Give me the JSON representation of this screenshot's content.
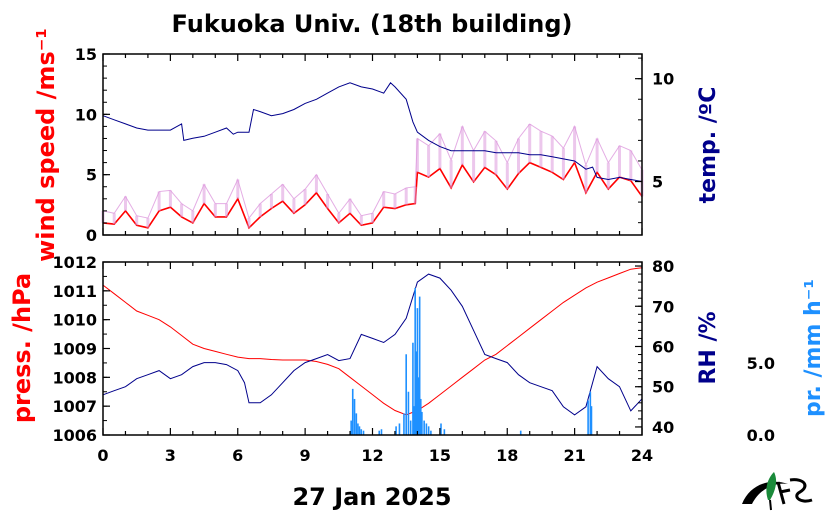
{
  "chart_data": [
    {
      "panel": "top",
      "type": "line",
      "title": "Fukuoka Univ. (18th building)",
      "x_ticks": [
        "0",
        "3",
        "6",
        "9",
        "12",
        "15",
        "18",
        "21",
        "24"
      ],
      "xlim": [
        0,
        24
      ],
      "left_axis": {
        "label": "wind speed /ms⁻¹",
        "ylim": [
          0,
          15
        ],
        "ticks": [
          "0",
          "5",
          "10",
          "15"
        ],
        "color": "#ff0000"
      },
      "right_axis": {
        "label": "temp. /ºC",
        "ylim": [
          2.4,
          11.2
        ],
        "ticks": [
          "5",
          "10"
        ],
        "color": "#00008b"
      },
      "series": [
        {
          "axis": "left",
          "style": "mean",
          "color": "#ff0000",
          "x": [
            0,
            0.5,
            1,
            1.5,
            2,
            2.5,
            3,
            3.5,
            4,
            4.5,
            5,
            5.5,
            6,
            6.5,
            7,
            7.5,
            8,
            8.5,
            9,
            9.5,
            10,
            10.5,
            11,
            11.5,
            12,
            12.5,
            13,
            13.5,
            13.9,
            14,
            14.5,
            15,
            15.5,
            16,
            16.5,
            17,
            17.5,
            18,
            18.5,
            19,
            19.5,
            20,
            20.5,
            21,
            21.5,
            22,
            22.5,
            23,
            23.5,
            24
          ],
          "y": [
            1.0,
            0.9,
            2.0,
            0.8,
            0.6,
            2.0,
            2.3,
            1.5,
            1.0,
            2.6,
            1.5,
            1.5,
            3.0,
            0.6,
            1.5,
            2.2,
            2.8,
            1.8,
            2.5,
            3.5,
            2.2,
            1.0,
            1.8,
            0.8,
            1.0,
            2.3,
            2.2,
            2.5,
            2.6,
            5.2,
            4.8,
            5.5,
            3.9,
            5.8,
            4.4,
            5.6,
            5.0,
            3.8,
            5.1,
            6.0,
            5.6,
            5.2,
            4.6,
            6.0,
            3.5,
            5.2,
            3.8,
            4.8,
            4.5,
            3.2
          ]
        },
        {
          "axis": "left",
          "style": "gust-band",
          "color": "#dd99dd",
          "x": [
            0,
            0.5,
            1,
            1.5,
            2,
            2.5,
            3,
            3.5,
            4,
            4.5,
            5,
            5.5,
            6,
            6.5,
            7,
            7.5,
            8,
            8.5,
            9,
            9.5,
            10,
            10.5,
            11,
            11.5,
            12,
            12.5,
            13,
            13.5,
            13.9,
            14,
            14.5,
            15,
            15.5,
            16,
            16.5,
            17,
            17.5,
            18,
            18.5,
            19,
            19.5,
            20,
            20.5,
            21,
            21.5,
            22,
            22.5,
            23,
            23.5,
            24
          ],
          "y": [
            2.0,
            1.8,
            3.2,
            1.6,
            1.4,
            3.6,
            3.7,
            2.6,
            2.0,
            4.2,
            2.6,
            2.6,
            4.6,
            1.4,
            2.6,
            3.4,
            4.2,
            3.0,
            3.8,
            5.0,
            3.4,
            1.8,
            3.0,
            1.6,
            1.8,
            3.6,
            3.4,
            3.9,
            4.0,
            8.0,
            7.4,
            8.4,
            6.2,
            9.0,
            7.0,
            8.6,
            7.8,
            6.0,
            8.0,
            9.2,
            8.6,
            8.2,
            7.2,
            9.0,
            5.8,
            8.0,
            6.0,
            7.4,
            7.0,
            5.4
          ]
        },
        {
          "axis": "right",
          "name": "",
          "color": "#00008b",
          "x": [
            0,
            0.5,
            1,
            1.5,
            2,
            2.5,
            3,
            3.5,
            3.6,
            4,
            4.5,
            5,
            5.5,
            5.8,
            6,
            6.5,
            6.7,
            7,
            7.5,
            8,
            8.5,
            9,
            9.5,
            10,
            10.5,
            11,
            11.5,
            12,
            12.5,
            12.8,
            13,
            13.5,
            13.8,
            14,
            14.5,
            15,
            15.5,
            16,
            16.5,
            17,
            17.5,
            18,
            18.5,
            19,
            19.5,
            20,
            20.5,
            21,
            21.5,
            21.8,
            22,
            22.5,
            23,
            23.5,
            24
          ],
          "y": [
            8.2,
            8.0,
            7.8,
            7.6,
            7.5,
            7.5,
            7.5,
            7.8,
            7.0,
            7.1,
            7.2,
            7.4,
            7.6,
            7.3,
            7.4,
            7.4,
            8.5,
            8.4,
            8.2,
            8.3,
            8.5,
            8.8,
            9.0,
            9.3,
            9.6,
            9.8,
            9.6,
            9.5,
            9.3,
            9.8,
            9.6,
            9.0,
            7.9,
            7.4,
            7.0,
            6.7,
            6.5,
            6.5,
            6.5,
            6.5,
            6.4,
            6.4,
            6.4,
            6.3,
            6.3,
            6.2,
            6.1,
            6.0,
            5.6,
            5.7,
            5.2,
            5.1,
            5.2,
            5.1,
            5.0
          ]
        }
      ]
    },
    {
      "panel": "bottom",
      "type": "line",
      "x_ticks": [
        "0",
        "3",
        "6",
        "9",
        "12",
        "15",
        "18",
        "21",
        "24"
      ],
      "xlim": [
        0,
        24
      ],
      "xlabel": "27 Jan 2025",
      "left_axis": {
        "label": "press. /hPa",
        "ylim": [
          1006,
          1012
        ],
        "ticks": [
          "1006",
          "1007",
          "1008",
          "1009",
          "1010",
          "1011",
          "1012"
        ],
        "color": "#ff0000"
      },
      "right_axis": {
        "label": "RH /%",
        "ylim": [
          38,
          81
        ],
        "ticks": [
          "40",
          "50",
          "60",
          "70",
          "80"
        ],
        "color": "#00008b"
      },
      "far_right_axis": {
        "label": "pr. /mm h⁻¹",
        "ylim": [
          0,
          12
        ],
        "ticks": [
          "0.0",
          "5.0"
        ],
        "color": "#1e90ff"
      },
      "series": [
        {
          "axis": "left",
          "name": "",
          "color": "#ff0000",
          "x": [
            0,
            0.5,
            1,
            1.5,
            2,
            2.5,
            3,
            3.5,
            4,
            4.5,
            5,
            5.5,
            6,
            6.5,
            7,
            7.5,
            8,
            8.5,
            9,
            9.5,
            10,
            10.5,
            11,
            11.5,
            12,
            12.5,
            13,
            13.5,
            14,
            14.5,
            15,
            15.5,
            16,
            16.5,
            17,
            17.5,
            18,
            18.5,
            19,
            19.5,
            20,
            20.5,
            21,
            21.5,
            22,
            22.5,
            23,
            23.5,
            24
          ],
          "y": [
            1011.2,
            1010.9,
            1010.6,
            1010.3,
            1010.15,
            1010.0,
            1009.75,
            1009.45,
            1009.15,
            1009.0,
            1008.9,
            1008.8,
            1008.7,
            1008.65,
            1008.65,
            1008.62,
            1008.6,
            1008.6,
            1008.6,
            1008.55,
            1008.45,
            1008.3,
            1008.0,
            1007.7,
            1007.4,
            1007.1,
            1006.85,
            1006.7,
            1006.85,
            1007.1,
            1007.4,
            1007.7,
            1008.0,
            1008.3,
            1008.6,
            1008.8,
            1009.1,
            1009.4,
            1009.7,
            1010.0,
            1010.3,
            1010.6,
            1010.85,
            1011.1,
            1011.3,
            1011.45,
            1011.6,
            1011.75,
            1011.8
          ]
        },
        {
          "axis": "right",
          "name": "",
          "color": "#00008b",
          "x": [
            0,
            0.5,
            1,
            1.5,
            2,
            2.5,
            3,
            3.5,
            4,
            4.5,
            5,
            5.5,
            6,
            6.3,
            6.5,
            7,
            7.5,
            8,
            8.5,
            9,
            9.5,
            10,
            10.5,
            11,
            11.5,
            12,
            12.5,
            13,
            13.5,
            14,
            14.5,
            15,
            15.5,
            16,
            16.5,
            17,
            17.5,
            18,
            18.5,
            19,
            19.5,
            20,
            20.5,
            21,
            21.5,
            22,
            22.5,
            23,
            23.5,
            24
          ],
          "y": [
            48,
            49,
            50,
            52,
            53,
            54,
            52,
            53,
            55,
            56,
            56,
            55.5,
            54,
            51,
            46,
            46,
            48,
            51,
            54,
            56,
            57,
            58,
            56.5,
            57,
            63,
            62,
            61,
            63,
            67,
            76,
            78,
            77,
            74,
            70,
            64,
            58,
            57,
            56,
            53,
            51,
            50,
            49,
            45,
            43,
            45,
            55,
            52,
            50,
            44,
            47
          ]
        },
        {
          "axis": "far-right",
          "name": "",
          "type": "bar",
          "color": "#1e90ff",
          "x": [
            11.05,
            11.12,
            11.2,
            11.28,
            11.35,
            11.42,
            11.5,
            11.6,
            12.3,
            12.4,
            13.05,
            13.2,
            13.4,
            13.5,
            13.6,
            13.7,
            13.8,
            13.85,
            13.9,
            13.95,
            14.0,
            14.05,
            14.1,
            14.15,
            14.2,
            14.3,
            14.4,
            14.5,
            14.6,
            15.05,
            15.2,
            18.6,
            21.6,
            21.7,
            21.75
          ],
          "y": [
            1.0,
            3.2,
            2.5,
            1.5,
            0.8,
            0.6,
            0.4,
            0.3,
            0.3,
            0.4,
            0.6,
            0.8,
            1.5,
            5.6,
            3.0,
            1.0,
            6.4,
            2.0,
            10.2,
            5.8,
            8.8,
            4.0,
            9.6,
            2.5,
            1.6,
            1.0,
            0.8,
            0.6,
            0.3,
            0.8,
            0.4,
            0.3,
            2.4,
            3.0,
            2.0
          ]
        }
      ]
    }
  ]
}
